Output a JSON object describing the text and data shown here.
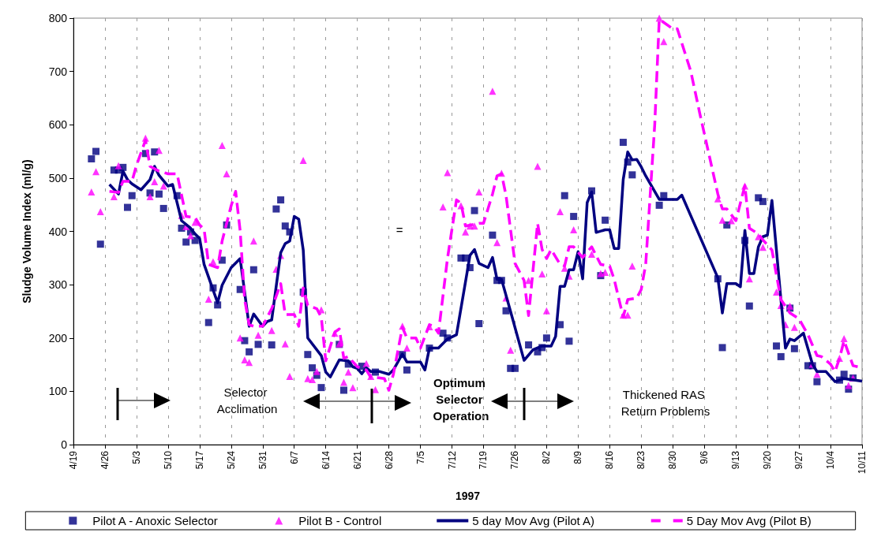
{
  "chart_data": {
    "type": "scatter",
    "xlabel": "1997",
    "ylabel": "Sludge Volume Index (ml/g)",
    "xlim": [
      "--04-19",
      "--10-11"
    ],
    "xticks": [
      {
        "value": "--04-19",
        "label": "4/19"
      },
      {
        "value": "--04-26",
        "label": "4/26"
      },
      {
        "value": "--05-03",
        "label": "5/3"
      },
      {
        "value": "--05-10",
        "label": "5/10"
      },
      {
        "value": "--05-17",
        "label": "5/17"
      },
      {
        "value": "--05-24",
        "label": "5/24"
      },
      {
        "value": "--05-31",
        "label": "5/31"
      },
      {
        "value": "--06-07",
        "label": "6/7"
      },
      {
        "value": "--06-14",
        "label": "6/14"
      },
      {
        "value": "--06-21",
        "label": "6/21"
      },
      {
        "value": "--06-28",
        "label": "6/28"
      },
      {
        "value": "--07-05",
        "label": "7/5"
      },
      {
        "value": "--07-12",
        "label": "7/12"
      },
      {
        "value": "--07-19",
        "label": "7/19"
      },
      {
        "value": "--07-26",
        "label": "7/26"
      },
      {
        "value": "--08-02",
        "label": "8/2"
      },
      {
        "value": "--08-09",
        "label": "8/9"
      },
      {
        "value": "--08-16",
        "label": "8/16"
      },
      {
        "value": "--08-23",
        "label": "8/23"
      },
      {
        "value": "--08-30",
        "label": "8/30"
      },
      {
        "value": "--09-06",
        "label": "9/6"
      },
      {
        "value": "--09-13",
        "label": "9/13"
      },
      {
        "value": "--09-20",
        "label": "9/20"
      },
      {
        "value": "--09-27",
        "label": "9/27"
      },
      {
        "value": "--10-04",
        "label": "10/4"
      },
      {
        "value": "--10-11",
        "label": "10/11"
      }
    ],
    "ylim": [
      0,
      800
    ],
    "yticks": [
      0,
      100,
      200,
      300,
      400,
      500,
      600,
      700,
      800
    ],
    "grid": "x",
    "legend": "bottom",
    "annotations": [
      "Selector Acclimation",
      "=",
      "Optimum Selector Operation",
      "Thickened RAS Return Problems"
    ],
    "series": [
      {
        "name": "Pilot A - Anoxic Selector",
        "marker": "square",
        "color": "#000080",
        "x": [
          "--04-23",
          "--04-24",
          "--04-25",
          "--04-28",
          "--04-29",
          "--04-30",
          "--05-01",
          "--05-02",
          "--05-05",
          "--05-06",
          "--05-07",
          "--05-08",
          "--05-09",
          "--05-12",
          "--05-13",
          "--05-14",
          "--05-15",
          "--05-16",
          "--05-19",
          "--05-20",
          "--05-21",
          "--05-22",
          "--05-23",
          "--05-26",
          "--05-27",
          "--05-28",
          "--05-29",
          "--05-30",
          "--06-02",
          "--06-03",
          "--06-04",
          "--06-05",
          "--06-06",
          "--06-09",
          "--06-10",
          "--06-11",
          "--06-12",
          "--06-13",
          "--06-17",
          "--06-18",
          "--06-19",
          "--06-22",
          "--06-25",
          "--07-01",
          "--07-02",
          "--07-07",
          "--07-10",
          "--07-11",
          "--07-14",
          "--07-15",
          "--07-16",
          "--07-17",
          "--07-18",
          "--07-21",
          "--07-22",
          "--07-23",
          "--07-24",
          "--07-25",
          "--07-26",
          "--07-29",
          "--07-31",
          "--08-01",
          "--08-02",
          "--08-05",
          "--08-06",
          "--08-07",
          "--08-08",
          "--08-12",
          "--08-14",
          "--08-15",
          "--08-19",
          "--08-20",
          "--08-21",
          "--08-27",
          "--08-28",
          "--09-09",
          "--09-10",
          "--09-11",
          "--09-15",
          "--09-16",
          "--09-18",
          "--09-19",
          "--09-22",
          "--09-23",
          "--09-25",
          "--09-26",
          "--09-29",
          "--09-30",
          "--10-01",
          "--10-06",
          "--10-07",
          "--10-08",
          "--10-09"
        ],
        "values": [
          536,
          550,
          376,
          515,
          515,
          520,
          445,
          467,
          546,
          472,
          549,
          470,
          443,
          467,
          406,
          380,
          399,
          383,
          229,
          294,
          262,
          346,
          412,
          291,
          195,
          174,
          328,
          188,
          187,
          442,
          459,
          410,
          399,
          286,
          169,
          144,
          130,
          107,
          188,
          102,
          151,
          147,
          136,
          169,
          140,
          181,
          209,
          200,
          350,
          350,
          332,
          439,
          227,
          393,
          308,
          308,
          251,
          143,
          143,
          187,
          174,
          182,
          200,
          225,
          467,
          194,
          428,
          476,
          317,
          421,
          567,
          530,
          506,
          449,
          467,
          311,
          182,
          412,
          383,
          260,
          463,
          456,
          185,
          165,
          256,
          180,
          148,
          148,
          118,
          121,
          132,
          104,
          125
        ]
      },
      {
        "name": "Pilot B - Control",
        "marker": "triangle",
        "color": "#ff00ff",
        "x": [
          "--04-23",
          "--04-24",
          "--04-25",
          "--04-28",
          "--04-29",
          "--05-05",
          "--05-06",
          "--05-07",
          "--05-08",
          "--05-09",
          "--05-13",
          "--05-14",
          "--05-15",
          "--05-16",
          "--05-19",
          "--05-20",
          "--05-22",
          "--05-23",
          "--05-26",
          "--05-27",
          "--05-28",
          "--05-29",
          "--05-30",
          "--06-02",
          "--06-03",
          "--06-04",
          "--06-05",
          "--06-06",
          "--06-09",
          "--06-10",
          "--06-11",
          "--06-12",
          "--06-13",
          "--06-16",
          "--06-17",
          "--06-18",
          "--06-19",
          "--06-20",
          "--06-23",
          "--06-24",
          "--06-25",
          "--07-01",
          "--07-02",
          "--07-07",
          "--07-10",
          "--07-11",
          "--07-14",
          "--07-15",
          "--07-16",
          "--07-17",
          "--07-18",
          "--07-21",
          "--07-22",
          "--07-23",
          "--07-24",
          "--07-25",
          "--07-29",
          "--07-31",
          "--08-01",
          "--08-02",
          "--08-05",
          "--08-06",
          "--08-07",
          "--08-08",
          "--08-12",
          "--08-14",
          "--08-15",
          "--08-19",
          "--08-20",
          "--08-21",
          "--08-27",
          "--08-28",
          "--09-09",
          "--09-10",
          "--09-12",
          "--09-15",
          "--09-16",
          "--09-18",
          "--09-19",
          "--09-22",
          "--09-23",
          "--09-24",
          "--09-25",
          "--09-26",
          "--09-30",
          "--10-01",
          "--10-06",
          "--10-07",
          "--10-08",
          "--10-09"
        ],
        "values": [
          474,
          512,
          437,
          465,
          523,
          575,
          465,
          493,
          552,
          485,
          430,
          409,
          392,
          417,
          273,
          343,
          561,
          508,
          200,
          159,
          154,
          382,
          205,
          214,
          329,
          355,
          189,
          128,
          533,
          124,
          122,
          137,
          253,
          209,
          189,
          117,
          136,
          107,
          152,
          128,
          103,
          222,
          181,
          221,
          446,
          510,
          448,
          399,
          410,
          410,
          474,
          663,
          379,
          509,
          275,
          177,
          308,
          522,
          320,
          251,
          437,
          331,
          316,
          403,
          357,
          321,
          323,
          243,
          243,
          335,
          800,
          756,
          461,
          421,
          420,
          485,
          311,
          390,
          370,
          286,
          261,
          225,
          260,
          220,
          151,
          132,
          162,
          199,
          111,
          125
        ]
      },
      {
        "name": "5 day Mov Avg (Pilot A)",
        "type": "line",
        "marker": "none",
        "line_style": "solid",
        "color": "#000080",
        "x": [
          "--04-27",
          "--04-29",
          "--04-30",
          "--05-01",
          "--05-02",
          "--05-04",
          "--05-06",
          "--05-07",
          "--05-08",
          "--05-10",
          "--05-11",
          "--05-13",
          "--05-15",
          "--05-16",
          "--05-17",
          "--05-18",
          "--05-21",
          "--05-22",
          "--05-24",
          "--05-26",
          "--05-28",
          "--05-29",
          "--05-31",
          "--06-01",
          "--06-02",
          "--06-04",
          "--06-05",
          "--06-06",
          "--06-07",
          "--06-08",
          "--06-09",
          "--06-10",
          "--06-13",
          "--06-14",
          "--06-15",
          "--06-17",
          "--06-19",
          "--06-20",
          "--06-21",
          "--06-22",
          "--06-23",
          "--06-24",
          "--06-26",
          "--06-28",
          "--06-29",
          "--07-01",
          "--07-02",
          "--07-05",
          "--07-06",
          "--07-07",
          "--07-09",
          "--07-11",
          "--07-13",
          "--07-16",
          "--07-17",
          "--07-18",
          "--07-20",
          "--07-21",
          "--07-22",
          "--07-23",
          "--07-25",
          "--07-28",
          "--07-30",
          "--08-01",
          "--08-03",
          "--08-04",
          "--08-05",
          "--08-06",
          "--08-07",
          "--08-08",
          "--08-09",
          "--08-10",
          "--08-11",
          "--08-12",
          "--08-13",
          "--08-15",
          "--08-16",
          "--08-17",
          "--08-18",
          "--08-19",
          "--08-20",
          "--08-21",
          "--08-22",
          "--08-23",
          "--08-24",
          "--08-27",
          "--08-31",
          "--09-01",
          "--09-09",
          "--09-10",
          "--09-11",
          "--09-13",
          "--09-14",
          "--09-15",
          "--09-16",
          "--09-17",
          "--09-18",
          "--09-19",
          "--09-20",
          "--09-21",
          "--09-23",
          "--09-24",
          "--09-25",
          "--09-26",
          "--09-28",
          "--09-30",
          "--10-01",
          "--10-03",
          "--10-05",
          "--10-07",
          "--10-11"
        ],
        "values": [
          488,
          470,
          513,
          497,
          489,
          478,
          497,
          522,
          505,
          485,
          488,
          420,
          406,
          395,
          387,
          338,
          266,
          299,
          332,
          349,
          222,
          245,
          222,
          231,
          234,
          360,
          377,
          382,
          428,
          423,
          365,
          200,
          167,
          136,
          127,
          159,
          157,
          146,
          143,
          133,
          144,
          137,
          137,
          132,
          140,
          170,
          155,
          155,
          140,
          181,
          181,
          198,
          206,
          355,
          366,
          340,
          332,
          351,
          310,
          310,
          250,
          158,
          178,
          185,
          185,
          203,
          297,
          297,
          328,
          328,
          362,
          311,
          454,
          474,
          398,
          403,
          403,
          368,
          368,
          497,
          549,
          534,
          535,
          521,
          504,
          460,
          460,
          468,
          313,
          247,
          302,
          302,
          296,
          402,
          321,
          321,
          371,
          390,
          393,
          458,
          272,
          181,
          198,
          195,
          209,
          151,
          137,
          137,
          118,
          124,
          119
        ]
      },
      {
        "name": "5 Day Mov Avg (Pilot B)",
        "type": "line",
        "marker": "none",
        "line_style": "dashed",
        "color": "#ff00ff",
        "x": [
          "--04-27",
          "--04-29",
          "--04-30",
          "--05-02",
          "--05-03",
          "--05-05",
          "--05-06",
          "--05-08",
          "--05-10",
          "--05-12",
          "--05-14",
          "--05-16",
          "--05-17",
          "--05-18",
          "--05-19",
          "--05-21",
          "--05-22",
          "--05-24",
          "--05-25",
          "--05-26",
          "--05-27",
          "--05-28",
          "--05-29",
          "--05-31",
          "--06-01",
          "--06-02",
          "--06-04",
          "--06-05",
          "--06-07",
          "--06-08",
          "--06-09",
          "--06-10",
          "--06-12",
          "--06-13",
          "--06-14",
          "--06-16",
          "--06-17",
          "--06-18",
          "--06-19",
          "--06-21",
          "--06-23",
          "--06-24",
          "--06-25",
          "--06-27",
          "--06-28",
          "--06-29",
          "--07-01",
          "--07-02",
          "--07-04",
          "--07-05",
          "--07-07",
          "--07-08",
          "--07-09",
          "--07-11",
          "--07-13",
          "--07-14",
          "--07-15",
          "--07-18",
          "--07-19",
          "--07-21",
          "--07-22",
          "--07-23",
          "--07-24",
          "--07-26",
          "--07-28",
          "--07-29",
          "--07-31",
          "--08-01",
          "--08-02",
          "--08-03",
          "--08-05",
          "--08-06",
          "--08-07",
          "--08-08",
          "--08-10",
          "--08-12",
          "--08-14",
          "--08-16",
          "--08-17",
          "--08-19",
          "--08-20",
          "--08-22",
          "--08-23",
          "--08-24",
          "--08-26",
          "--08-27",
          "--08-30",
          "--08-31",
          "--09-03",
          "--09-05",
          "--09-09",
          "--09-10",
          "--09-11",
          "--09-13",
          "--09-15",
          "--09-16",
          "--09-18",
          "--09-19",
          "--09-21",
          "--09-23",
          "--09-25",
          "--09-27",
          "--09-29",
          "--10-01",
          "--10-02",
          "--10-04",
          "--10-05",
          "--10-06",
          "--10-07",
          "--10-09",
          "--10-11"
        ],
        "values": [
          475,
          473,
          494,
          494,
          524,
          571,
          522,
          513,
          508,
          508,
          428,
          426,
          412,
          404,
          338,
          332,
          382,
          448,
          475,
          401,
          272,
          225,
          222,
          222,
          239,
          255,
          302,
          244,
          244,
          222,
          294,
          261,
          255,
          239,
          157,
          211,
          217,
          162,
          165,
          146,
          140,
          126,
          126,
          124,
          102,
          132,
          220,
          200,
          200,
          181,
          225,
          222,
          209,
          349,
          459,
          453,
          410,
          415,
          415,
          470,
          504,
          508,
          467,
          340,
          308,
          242,
          415,
          366,
          349,
          366,
          338,
          335,
          371,
          371,
          351,
          371,
          338,
          335,
          310,
          239,
          272,
          275,
          291,
          339,
          601,
          798,
          780,
          780,
          700,
          621,
          470,
          442,
          442,
          420,
          486,
          406,
          395,
          384,
          365,
          272,
          247,
          236,
          206,
          167,
          165,
          151,
          137,
          162,
          195,
          148,
          144
        ]
      }
    ]
  }
}
